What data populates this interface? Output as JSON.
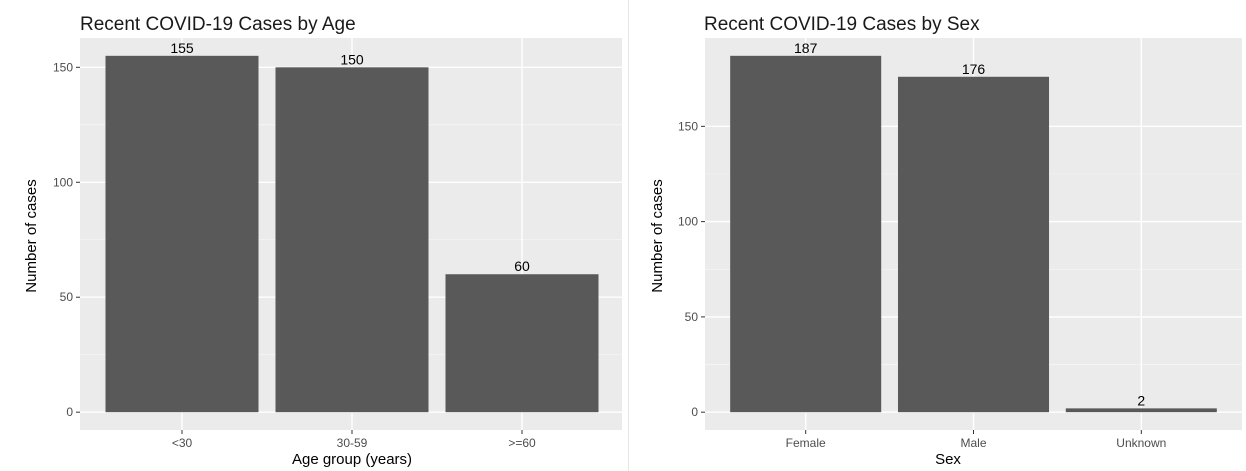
{
  "chart_data": [
    {
      "type": "bar",
      "title": "Recent COVID-19 Cases by Age",
      "xlabel": "Age group (years)",
      "ylabel": "Number of cases",
      "categories": [
        "<30",
        "30-59",
        ">=60"
      ],
      "values": [
        155,
        150,
        60
      ],
      "data_labels": [
        "155",
        "150",
        "60"
      ],
      "yticks": [
        0,
        50,
        100,
        150
      ],
      "ytick_labels": [
        "0",
        "50",
        "100",
        "150"
      ],
      "ylim": [
        -7.75,
        162.75
      ],
      "grid": true,
      "colors": {
        "bar": "#595959",
        "panel": "#ebebeb",
        "grid_major": "#ffffff",
        "grid_minor": "#f5f5f5"
      }
    },
    {
      "type": "bar",
      "title": "Recent COVID-19 Cases by Sex",
      "xlabel": "Sex",
      "ylabel": "Number of cases",
      "categories": [
        "Female",
        "Male",
        "Unknown"
      ],
      "values": [
        187,
        176,
        2
      ],
      "data_labels": [
        "187",
        "176",
        "2"
      ],
      "yticks": [
        0,
        50,
        100,
        150
      ],
      "ytick_labels": [
        "0",
        "50",
        "100",
        "150"
      ],
      "ylim": [
        -9.35,
        196.35
      ],
      "grid": true,
      "colors": {
        "bar": "#595959",
        "panel": "#ebebeb",
        "grid_major": "#ffffff",
        "grid_minor": "#f5f5f5"
      }
    }
  ]
}
